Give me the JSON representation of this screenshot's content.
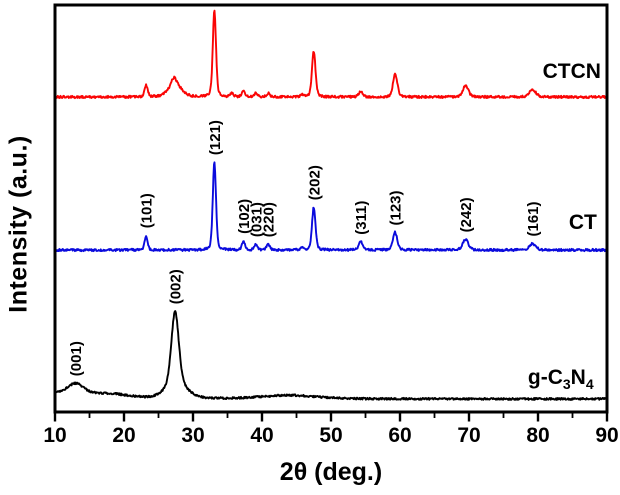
{
  "figure": {
    "background": "#ffffff",
    "frame_color": "#000000",
    "tick_label_color": "#000000"
  },
  "chart_data": {
    "type": "line",
    "subtype": "xrd-patterns-stacked",
    "title": "",
    "xlabel": "2θ (deg.)",
    "ylabel": "Intensity (a.u.)",
    "xlim": [
      10,
      90
    ],
    "x_major_ticks": [
      10,
      20,
      30,
      40,
      50,
      60,
      70,
      80,
      90
    ],
    "x_minor_step": 5,
    "grid": false,
    "legend_position": "inside-right, one black bold label beside each offset trace",
    "series": [
      {
        "name": "g-C3N4",
        "label_segments": [
          [
            "g-C",
            false
          ],
          [
            "3",
            true
          ],
          [
            "N",
            false
          ],
          [
            "4",
            true
          ]
        ],
        "color": "#000000",
        "baseline": 3.2,
        "noise": 0.24,
        "name_pos": {
          "x_deg": 83.3,
          "v": 8.6
        },
        "peaks": [
          {
            "two_theta": 12.0,
            "height": 1.6,
            "fwhm": 8.0
          },
          {
            "two_theta": 13.0,
            "height": 2.2,
            "fwhm": 2.6,
            "hkl": "(001)"
          },
          {
            "two_theta": 18.5,
            "height": 0.9,
            "fwhm": 6.0
          },
          {
            "two_theta": 27.4,
            "height": 18.0,
            "fwhm": 1.25,
            "hkl": "(002)"
          },
          {
            "two_theta": 27.6,
            "height": 3.5,
            "fwhm": 3.5
          },
          {
            "two_theta": 44.0,
            "height": 0.9,
            "fwhm": 9.0
          }
        ]
      },
      {
        "name": "CT",
        "label_segments": [
          [
            "CT",
            false
          ]
        ],
        "color": "#0b0bdd",
        "baseline": 39.8,
        "noise": 0.28,
        "name_pos": {
          "x_deg": 86.5,
          "v": 46.7
        },
        "peaks": [
          {
            "two_theta": 23.2,
            "height": 3.6,
            "fwhm": 0.5,
            "hkl": "(101)"
          },
          {
            "two_theta": 33.1,
            "height": 21.6,
            "fwhm": 0.55,
            "hkl": "(121)"
          },
          {
            "two_theta": 37.3,
            "height": 2.2,
            "fwhm": 0.5,
            "hkl": "(102)"
          },
          {
            "two_theta": 39.1,
            "height": 1.4,
            "fwhm": 0.5,
            "hkl": "(031)"
          },
          {
            "two_theta": 40.9,
            "height": 1.4,
            "fwhm": 0.55,
            "hkl": "(220)"
          },
          {
            "two_theta": 45.8,
            "height": 0.6,
            "fwhm": 0.6
          },
          {
            "two_theta": 47.5,
            "height": 10.5,
            "fwhm": 0.6,
            "hkl": "(202)"
          },
          {
            "two_theta": 54.3,
            "height": 2.0,
            "fwhm": 0.65,
            "hkl": "(311)"
          },
          {
            "two_theta": 59.3,
            "height": 4.3,
            "fwhm": 0.75,
            "hkl": "(123)"
          },
          {
            "two_theta": 69.5,
            "height": 2.6,
            "fwhm": 0.95,
            "hkl": "(242)"
          },
          {
            "two_theta": 79.2,
            "height": 1.6,
            "fwhm": 1.1,
            "hkl": "(161)"
          }
        ]
      },
      {
        "name": "CTCN",
        "label_segments": [
          [
            "CTCN",
            false
          ]
        ],
        "color": "#fa0505",
        "baseline": 77.4,
        "noise": 0.28,
        "name_pos": {
          "x_deg": 84.9,
          "v": 83.8
        },
        "peaks": [
          {
            "two_theta": 23.2,
            "height": 2.8,
            "fwhm": 0.55
          },
          {
            "two_theta": 27.4,
            "height": 3.2,
            "fwhm": 2.2
          },
          {
            "two_theta": 27.2,
            "height": 1.6,
            "fwhm": 0.8
          },
          {
            "two_theta": 33.1,
            "height": 21.3,
            "fwhm": 0.55
          },
          {
            "two_theta": 35.6,
            "height": 0.9,
            "fwhm": 0.6
          },
          {
            "two_theta": 37.3,
            "height": 1.4,
            "fwhm": 0.55
          },
          {
            "two_theta": 39.1,
            "height": 1.0,
            "fwhm": 0.55
          },
          {
            "two_theta": 40.9,
            "height": 0.9,
            "fwhm": 0.6
          },
          {
            "two_theta": 45.8,
            "height": 0.5,
            "fwhm": 0.6
          },
          {
            "two_theta": 47.5,
            "height": 11.2,
            "fwhm": 0.6
          },
          {
            "two_theta": 54.3,
            "height": 1.3,
            "fwhm": 0.7
          },
          {
            "two_theta": 59.3,
            "height": 5.7,
            "fwhm": 0.75
          },
          {
            "two_theta": 69.5,
            "height": 2.8,
            "fwhm": 0.95
          },
          {
            "two_theta": 79.2,
            "height": 1.9,
            "fwhm": 1.1
          }
        ]
      }
    ]
  }
}
